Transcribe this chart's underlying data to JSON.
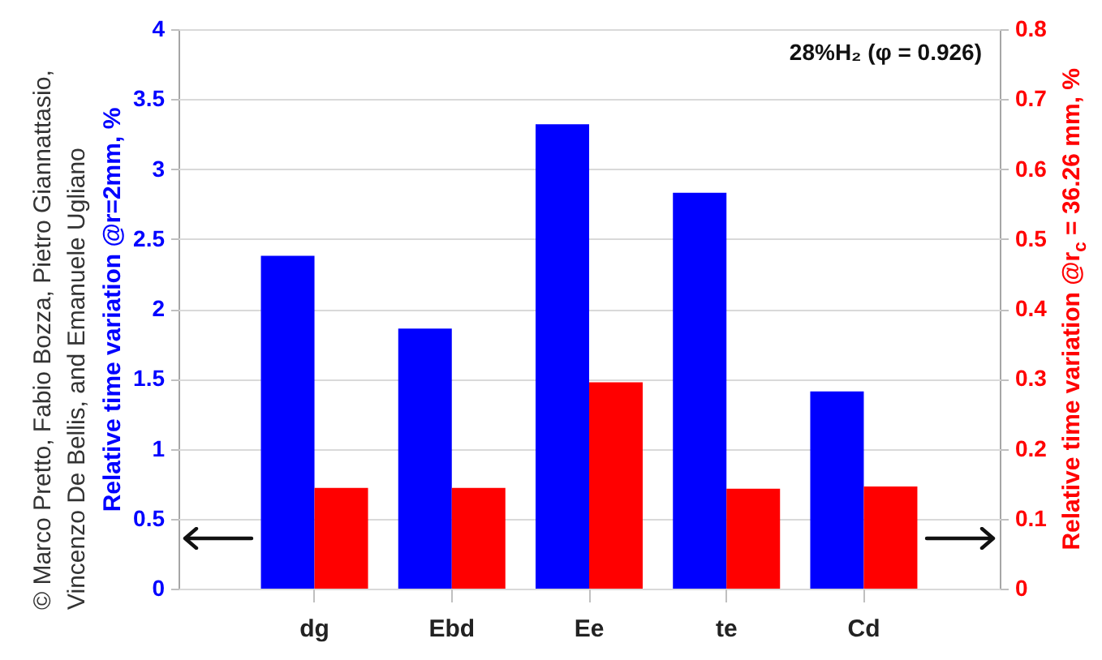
{
  "chart_data": {
    "type": "bar",
    "categories": [
      "dg",
      "Ebd",
      "Ee",
      "te",
      "Cd"
    ],
    "series": [
      {
        "color": "#0000ff",
        "values": [
          2.38,
          1.86,
          3.32,
          2.83,
          1.41
        ]
      },
      {
        "color": "#ff0000",
        "axis": "y2",
        "values": [
          0.144,
          0.144,
          0.295,
          0.143,
          0.146
        ]
      }
    ],
    "ylabel": "Relative time variation @r=2mm, %",
    "y2label": "Relative time variation @r$_{c}$ = 36.26 mm, %",
    "ylim": [
      0,
      4
    ],
    "yticks": [
      0,
      0.5,
      1,
      1.5,
      2,
      2.5,
      3,
      3.5,
      4
    ],
    "y2lim": [
      0,
      0.8
    ],
    "y2ticks": [
      0,
      0.1,
      0.2,
      0.3,
      0.4,
      0.5,
      0.6,
      0.7,
      0.8
    ],
    "grid": "y",
    "annotations": [
      "28%H₂ (φ = 0.926)",
      "© Marco Pretto, Fabio Bozza, Pietro Giannattasio, Vincenzo De Bellis, and Emanuele Ugliano"
    ]
  }
}
